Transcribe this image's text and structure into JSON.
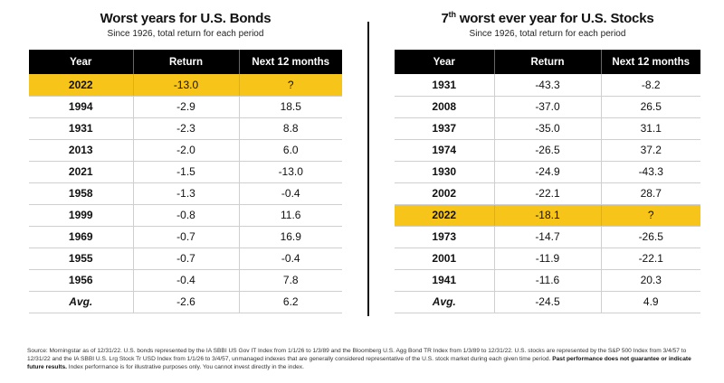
{
  "bonds": {
    "title": "Worst years for U.S. Bonds",
    "subtitle": "Since 1926, total return for each period",
    "headers": [
      "Year",
      "Return",
      "Next 12 months"
    ],
    "rows": [
      {
        "year": "2022",
        "ret": "-13.0",
        "next": "?",
        "highlight": true
      },
      {
        "year": "1994",
        "ret": "-2.9",
        "next": "18.5"
      },
      {
        "year": "1931",
        "ret": "-2.3",
        "next": "8.8"
      },
      {
        "year": "2013",
        "ret": "-2.0",
        "next": "6.0"
      },
      {
        "year": "2021",
        "ret": "-1.5",
        "next": "-13.0"
      },
      {
        "year": "1958",
        "ret": "-1.3",
        "next": "-0.4"
      },
      {
        "year": "1999",
        "ret": "-0.8",
        "next": "11.6"
      },
      {
        "year": "1969",
        "ret": "-0.7",
        "next": "16.9"
      },
      {
        "year": "1955",
        "ret": "-0.7",
        "next": "-0.4"
      },
      {
        "year": "1956",
        "ret": "-0.4",
        "next": "7.8"
      },
      {
        "year": "Avg.",
        "ret": "-2.6",
        "next": "6.2",
        "avg": true
      }
    ]
  },
  "stocks": {
    "title_pre": "7",
    "title_sup": "th",
    "title_post": " worst ever year for U.S. Stocks",
    "subtitle": "Since 1926, total return for each period",
    "headers": [
      "Year",
      "Return",
      "Next 12 months"
    ],
    "rows": [
      {
        "year": "1931",
        "ret": "-43.3",
        "next": "-8.2"
      },
      {
        "year": "2008",
        "ret": "-37.0",
        "next": "26.5"
      },
      {
        "year": "1937",
        "ret": "-35.0",
        "next": "31.1"
      },
      {
        "year": "1974",
        "ret": "-26.5",
        "next": "37.2"
      },
      {
        "year": "1930",
        "ret": "-24.9",
        "next": "-43.3"
      },
      {
        "year": "2002",
        "ret": "-22.1",
        "next": "28.7"
      },
      {
        "year": "2022",
        "ret": "-18.1",
        "next": "?",
        "highlight": true
      },
      {
        "year": "1973",
        "ret": "-14.7",
        "next": "-26.5"
      },
      {
        "year": "2001",
        "ret": "-11.9",
        "next": "-22.1"
      },
      {
        "year": "1941",
        "ret": "-11.6",
        "next": "20.3"
      },
      {
        "year": "Avg.",
        "ret": "-24.5",
        "next": "4.9",
        "avg": true
      }
    ]
  },
  "footnote": {
    "text": "Source: Morningstar as of 12/31/22. U.S. bonds represented by the IA SBBI US Gov IT Index from 1/1/26 to 1/3/89 and the Bloomberg U.S. Agg Bond TR Index from 1/3/89 to 12/31/22. U.S. stocks are represented by the S&P 500 Index from 3/4/57 to 12/31/22 and the IA SBBI U.S. Lrg Stock Tr USD Index from 1/1/26 to 3/4/57, unmanaged indexes that are generally considered representative of the U.S. stock market during each given time period. ",
    "bold": "Past performance does not guarantee or indicate future results.",
    "tail": " Index performance is for illustrative purposes only. You cannot invest directly in the index."
  }
}
